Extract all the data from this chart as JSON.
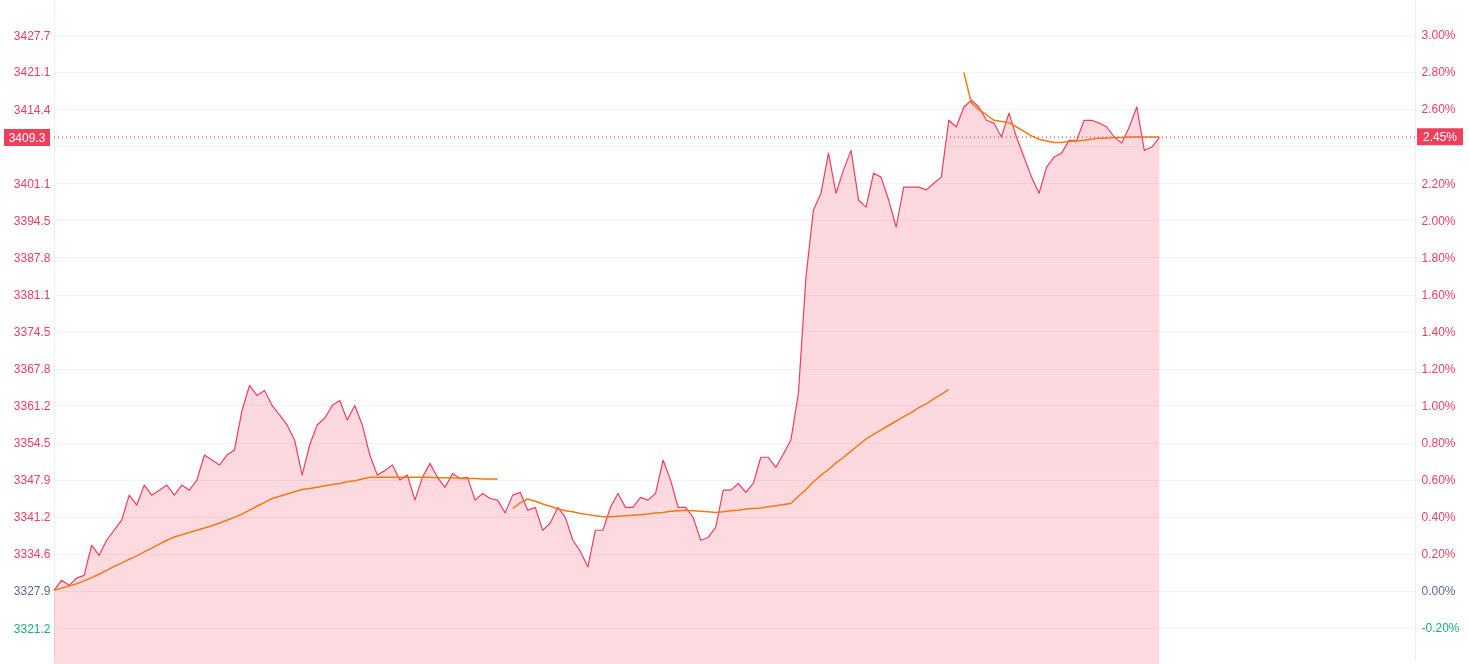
{
  "chart_data": {
    "type": "area",
    "categories": [
      null,
      null,
      null,
      null,
      null,
      null,
      null,
      null,
      null,
      null,
      null,
      null,
      null,
      null,
      null,
      null,
      null,
      null,
      null,
      null,
      null,
      null,
      null,
      null,
      null,
      null,
      null,
      null,
      null,
      null,
      null,
      null,
      null,
      null,
      null,
      null,
      null,
      null,
      null,
      null,
      null,
      null,
      null,
      null,
      null,
      null,
      null,
      null,
      null,
      null,
      null,
      null,
      null,
      null,
      null,
      null,
      null,
      null,
      null,
      null,
      null,
      null,
      null,
      null,
      null,
      null,
      null,
      null,
      null,
      null,
      null,
      null,
      null,
      null,
      null,
      null,
      null,
      null,
      null,
      null,
      null,
      null,
      null,
      null,
      null,
      null,
      null,
      null,
      null,
      null,
      null,
      null,
      null,
      null,
      null,
      null,
      null,
      null,
      null,
      null,
      null,
      null,
      null,
      null,
      null,
      null,
      null,
      null,
      null,
      null,
      null,
      null,
      null,
      null,
      null,
      null,
      null,
      null,
      null,
      null,
      null,
      null,
      null,
      null,
      null,
      null,
      null,
      null,
      null,
      null,
      null,
      null,
      null,
      null,
      null,
      null,
      null,
      null,
      null,
      null,
      null,
      null,
      null,
      null,
      null,
      null,
      null,
      null,
      null,
      null,
      null,
      null,
      null,
      null,
      null,
      null,
      null,
      null,
      null,
      null,
      null,
      null,
      null,
      null,
      null,
      null,
      null,
      null,
      null,
      null,
      null,
      null,
      null,
      null,
      null,
      null,
      null,
      null,
      null,
      null,
      null,
      null
    ],
    "series": [
      {
        "color": "#ef3f5d",
        "values": [
          3328.0,
          3329.8,
          3328.9,
          3330.2,
          3330.7,
          3336.1,
          3334.3,
          3337.0,
          3338.8,
          3340.6,
          3345.1,
          3343.3,
          3346.9,
          3345.1,
          3346.0,
          3346.9,
          3345.1,
          3346.9,
          3346.0,
          3347.8,
          3352.3,
          3351.4,
          3350.5,
          3352.3,
          3353.2,
          3360.3,
          3364.8,
          3363.0,
          3363.9,
          3361.2,
          3359.5,
          3357.7,
          3355.0,
          3348.7,
          3354.1,
          3357.7,
          3358.9,
          3361.2,
          3362.1,
          3358.6,
          3361.2,
          3357.7,
          3352.3,
          3348.7,
          3349.5,
          3350.5,
          3347.8,
          3348.7,
          3344.2,
          3348.3,
          3350.8,
          3348.3,
          3346.5,
          3349.0,
          3348.1,
          3348.3,
          3344.2,
          3345.4,
          3344.5,
          3344.2,
          3341.9,
          3345.1,
          3345.6,
          3342.4,
          3342.9,
          3338.8,
          3340.1,
          3342.9,
          3341.1,
          3337.0,
          3335.0,
          3332.2,
          3338.8,
          3338.8,
          3342.9,
          3345.4,
          3342.9,
          3342.9,
          3344.7,
          3344.2,
          3345.4,
          3351.4,
          3347.8,
          3342.9,
          3342.9,
          3341.1,
          3337.0,
          3337.5,
          3339.3,
          3346.0,
          3346.0,
          3347.2,
          3345.6,
          3347.2,
          3351.9,
          3351.9,
          3350.1,
          3352.5,
          3355.0,
          3363.4,
          3384.2,
          3396.3,
          3399.3,
          3406.5,
          3399.3,
          3403.5,
          3407.0,
          3398.1,
          3396.8,
          3402.9,
          3402.2,
          3398.1,
          3393.2,
          3400.4,
          3400.4,
          3400.4,
          3399.9,
          3401.1,
          3402.2,
          3412.4,
          3411.2,
          3414.8,
          3416.0,
          3414.8,
          3412.4,
          3411.9,
          3409.4,
          3413.7,
          3409.4,
          3405.8,
          3402.2,
          3399.3,
          3404.0,
          3405.8,
          3406.5,
          3408.8,
          3408.8,
          3412.4,
          3412.4,
          3411.9,
          3411.2,
          3409.4,
          3408.3,
          3411.2,
          3414.8,
          3407.0,
          3407.6,
          3409.3,
          null,
          null,
          null,
          null,
          null,
          null,
          null,
          null,
          null,
          null,
          null,
          null,
          null,
          null,
          null,
          null,
          null,
          null,
          null,
          null,
          null,
          null,
          null,
          null,
          null,
          null,
          null,
          null,
          null,
          null,
          null,
          null,
          null,
          null
        ]
      },
      {
        "type": "line",
        "color": "#f27a12",
        "values": [
          3328.0,
          3328.4,
          3328.8,
          3329.2,
          3329.7,
          3330.3,
          3330.9,
          3331.6,
          3332.3,
          3332.9,
          3333.6,
          3334.2,
          3334.9,
          3335.6,
          3336.3,
          3337.0,
          3337.6,
          3338.0,
          3338.4,
          3338.8,
          3339.2,
          3339.6,
          3340.1,
          3340.6,
          3341.1,
          3341.7,
          3342.4,
          3343.1,
          3343.8,
          3344.5,
          3344.9,
          3345.3,
          3345.7,
          3346.1,
          3346.3,
          3346.5,
          3346.8,
          3347.0,
          3347.2,
          3347.5,
          3347.7,
          3348.0,
          3348.3,
          3348.3,
          3348.3,
          3348.3,
          3348.3,
          3348.3,
          3348.3,
          3348.3,
          3348.3,
          3348.2,
          3348.2,
          3348.2,
          3348.1,
          3348.1,
          3348.1,
          3348.0,
          3348.0,
          3348.0,
          null,
          3342.7,
          3343.7,
          3344.4,
          3344.0,
          3343.5,
          3343.1,
          3342.6,
          3342.3,
          3342.1,
          3341.8,
          3341.6,
          3341.4,
          3341.2,
          3341.2,
          3341.3,
          3341.4,
          3341.5,
          3341.6,
          3341.7,
          3341.9,
          3342.0,
          3342.2,
          3342.3,
          3342.4,
          3342.3,
          3342.2,
          3342.1,
          3342.0,
          3342.1,
          3342.3,
          3342.4,
          3342.6,
          3342.7,
          3342.8,
          3343.0,
          3343.2,
          3343.4,
          3343.6,
          3344.9,
          3346.1,
          3347.5,
          3348.7,
          3349.7,
          3350.9,
          3351.9,
          3353.0,
          3354.1,
          3355.2,
          3356.0,
          3356.8,
          3357.6,
          3358.4,
          3359.2,
          3359.9,
          3360.8,
          3361.5,
          3362.4,
          3363.2,
          3364.1,
          null,
          3421.0,
          3415.5,
          3414.3,
          3413.4,
          3412.4,
          3412.2,
          3412.0,
          3411.2,
          3410.4,
          3409.6,
          3409.0,
          3408.7,
          3408.4,
          3408.4,
          3408.6,
          3408.7,
          3408.8,
          3409.0,
          3409.2,
          3409.2,
          3409.3,
          3409.3,
          3409.4,
          3409.4,
          3409.4,
          3409.4,
          3409.4,
          null,
          null,
          null,
          null,
          null,
          null,
          null,
          null,
          null,
          null,
          null,
          null,
          null,
          null,
          null,
          null,
          null,
          null,
          null,
          null,
          null,
          null,
          null,
          null,
          null,
          null,
          null,
          null,
          null,
          null,
          null,
          null,
          null,
          null
        ]
      }
    ],
    "ylim": [
      3315.5,
      3434.0
    ],
    "yticks": [
      3321.2,
      3327.9,
      3334.6,
      3341.2,
      3347.9,
      3354.5,
      3361.2,
      3367.8,
      3374.5,
      3381.1,
      3387.8,
      3394.5,
      3401.1,
      {
        "value": 3407.8,
        "label": null
      },
      3414.4,
      3421.1,
      3427.7
    ],
    "y2lim": [
      -0.373,
      3.188
    ],
    "y2ticks": [
      {
        "value": -0.2,
        "label": "-0.20%"
      },
      {
        "value": 0,
        "label": "0.00%"
      },
      {
        "value": 0.2,
        "label": "0.20%"
      },
      {
        "value": 0.4,
        "label": "0.40%"
      },
      {
        "value": 0.6,
        "label": "0.60%"
      },
      {
        "value": 0.8,
        "label": "0.80%"
      },
      {
        "value": 1.0,
        "label": "1.00%"
      },
      {
        "value": 1.2,
        "label": "1.20%"
      },
      {
        "value": 1.4,
        "label": "1.40%"
      },
      {
        "value": 1.6,
        "label": "1.60%"
      },
      {
        "value": 1.8,
        "label": "1.80%"
      },
      {
        "value": 2.0,
        "label": "2.00%"
      },
      {
        "value": 2.2,
        "label": "2.20%"
      },
      {
        "value": 2.4,
        "label": null
      },
      {
        "value": 2.6,
        "label": "2.60%"
      },
      {
        "value": 2.8,
        "label": "2.80%"
      },
      {
        "value": 3.0,
        "label": "3.00%"
      }
    ],
    "ref_lines": [
      {
        "axis": "y",
        "value": 3409.3,
        "label": "3409.3",
        "color": "#ef3f5d",
        "line_style": "dotted"
      },
      {
        "axis": "y2",
        "value": 2.45,
        "label": "2.45%",
        "color": "#ef3f5d",
        "line_style": "dotted"
      }
    ],
    "grid": "y"
  }
}
